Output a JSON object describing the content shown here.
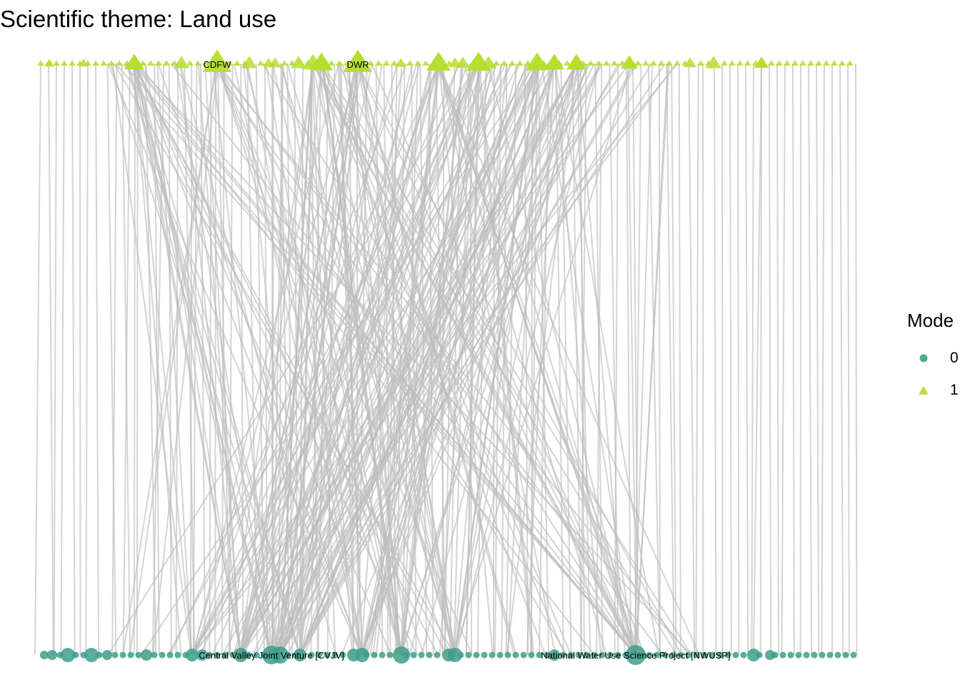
{
  "title": "Scientific theme: Land use",
  "legend": {
    "title": "Mode",
    "items": [
      {
        "label": "0",
        "shape": "circle",
        "color": "#3d9e8a"
      },
      {
        "label": "1",
        "shape": "triangle",
        "color": "#b5de2b"
      }
    ]
  },
  "colors": {
    "mode0": "#3d9e8a",
    "mode1": "#b5de2b",
    "edge": "#bdbdbd"
  },
  "labels": {
    "cdfw": "CDFW",
    "dwr": "DWR",
    "cvjv": "Central Valley Joint Venture [CVJV]",
    "nwusp": "National Water Use Science Project [NWUSP]"
  },
  "chart_data": {
    "type": "bipartite-network",
    "modes": [
      "0",
      "1"
    ],
    "labeled_nodes": {
      "mode1": [
        "CDFW",
        "DWR"
      ],
      "mode0": [
        "Central Valley Joint Venture [CVJV]",
        "National Water Use Science Project [NWUSP]"
      ]
    }
  }
}
